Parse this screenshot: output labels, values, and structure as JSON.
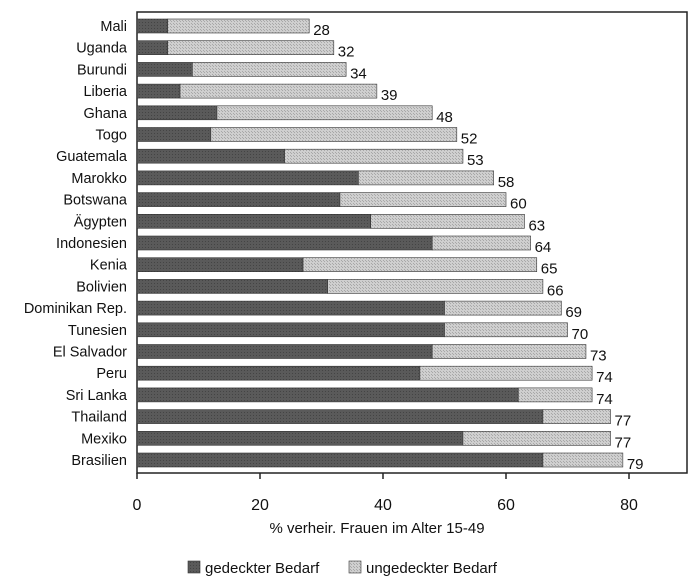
{
  "chart_data": {
    "type": "bar",
    "orientation": "horizontal",
    "stacked": true,
    "categories": [
      "Mali",
      "Uganda",
      "Burundi",
      "Liberia",
      "Ghana",
      "Togo",
      "Guatemala",
      "Marokko",
      "Botswana",
      "Ägypten",
      "Indonesien",
      "Kenia",
      "Bolivien",
      "Dominikan Rep.",
      "Tunesien",
      "El Salvador",
      "Peru",
      "Sri Lanka",
      "Thailand",
      "Mexiko",
      "Brasilien"
    ],
    "series": [
      {
        "name": "gedeckter Bedarf",
        "color": "#555555",
        "values": [
          5,
          5,
          9,
          7,
          13,
          12,
          24,
          36,
          33,
          38,
          48,
          27,
          31,
          50,
          50,
          48,
          46,
          62,
          66,
          53,
          66
        ]
      },
      {
        "name": "ungedeckter Bedarf",
        "color": "#c8c8c8",
        "values": [
          23,
          27,
          25,
          32,
          35,
          40,
          29,
          22,
          27,
          25,
          16,
          38,
          35,
          19,
          20,
          25,
          28,
          12,
          11,
          24,
          13
        ]
      }
    ],
    "totals": [
      28,
      32,
      34,
      39,
      48,
      52,
      53,
      58,
      60,
      63,
      64,
      65,
      66,
      69,
      70,
      73,
      74,
      74,
      77,
      77,
      79
    ],
    "xlabel": "% verheir. Frauen im Alter 15-49",
    "xlim": [
      0,
      80
    ],
    "xticks": [
      0,
      20,
      40,
      60,
      80
    ],
    "legend_position": "bottom"
  }
}
